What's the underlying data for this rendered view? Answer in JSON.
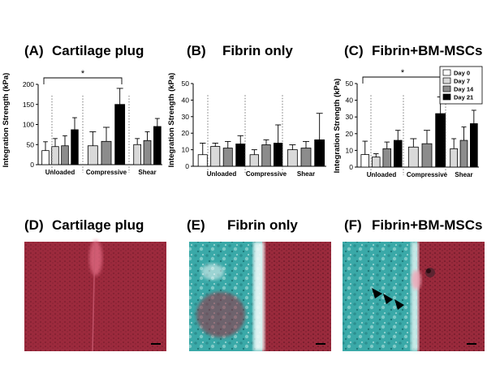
{
  "figure": {
    "panels": {
      "a": {
        "letter": "(A)",
        "title": "Cartilage plug"
      },
      "b": {
        "letter": "(B)",
        "title": "Fibrin only"
      },
      "c": {
        "letter": "(C)",
        "title": "Fibrin+BM-MSCs"
      },
      "d": {
        "letter": "(D)",
        "title": "Cartilage plug"
      },
      "e": {
        "letter": "(E)",
        "title": "Fibrin only"
      },
      "f": {
        "letter": "(F)",
        "title": "Fibrin+BM-MSCs"
      }
    },
    "colors": {
      "histology_background": "#9a2a3c",
      "fibrin_stain": "#3aa9a8",
      "arrowheads": "#000000"
    }
  },
  "chart_data": [
    {
      "type": "bar",
      "panel": "(A) Cartilage plug",
      "ylabel": "Integration Strength (kPa)",
      "ylim": [
        0,
        200
      ],
      "yticks": [
        0,
        50,
        100,
        150,
        200
      ],
      "categories": [
        "Unloaded",
        "Compressive",
        "Shear"
      ],
      "series": [
        {
          "name": "Day 0",
          "color": "#ffffff",
          "values": [
            35,
            null,
            null
          ],
          "errors": [
            22,
            null,
            null
          ]
        },
        {
          "name": "Day 7",
          "color": "#d9d9d9",
          "values": [
            45,
            47,
            50
          ],
          "errors": [
            20,
            35,
            15
          ]
        },
        {
          "name": "Day 14",
          "color": "#8c8c8c",
          "values": [
            47,
            58,
            60
          ],
          "errors": [
            25,
            35,
            22
          ]
        },
        {
          "name": "Day 21",
          "color": "#000000",
          "values": [
            87,
            150,
            95
          ],
          "errors": [
            30,
            40,
            20
          ]
        }
      ],
      "significance": [
        {
          "label": "*",
          "from": "Day 0 Unloaded",
          "to": "Day 21 Compressive"
        }
      ]
    },
    {
      "type": "bar",
      "panel": "(B) Fibrin only",
      "ylabel": "Integration Strength (kPa)",
      "ylim": [
        0,
        50
      ],
      "yticks": [
        0,
        10,
        20,
        30,
        40,
        50
      ],
      "categories": [
        "Unloaded",
        "Compressive",
        "Shear"
      ],
      "series": [
        {
          "name": "Day 0",
          "color": "#ffffff",
          "values": [
            7,
            null,
            null
          ],
          "errors": [
            7,
            null,
            null
          ]
        },
        {
          "name": "Day 7",
          "color": "#d9d9d9",
          "values": [
            12,
            7,
            10
          ],
          "errors": [
            2,
            3,
            3
          ]
        },
        {
          "name": "Day 14",
          "color": "#8c8c8c",
          "values": [
            11,
            13,
            11
          ],
          "errors": [
            4,
            3,
            4
          ]
        },
        {
          "name": "Day 21",
          "color": "#000000",
          "values": [
            13.5,
            14,
            16
          ],
          "errors": [
            5,
            11,
            16
          ]
        }
      ]
    },
    {
      "type": "bar",
      "panel": "(C) Fibrin+BM-MSCs",
      "ylabel": "Integration Strength (kPa)",
      "ylim": [
        0,
        50
      ],
      "yticks": [
        0,
        10,
        20,
        30,
        40,
        50
      ],
      "categories": [
        "Unloaded",
        "Compressive",
        "Shear"
      ],
      "legend": [
        "Day 0",
        "Day 7",
        "Day 14",
        "Day 21"
      ],
      "legend_position": "top-right",
      "series": [
        {
          "name": "Day 0",
          "color": "#ffffff",
          "values": [
            7.5,
            null,
            null
          ],
          "errors": [
            8,
            null,
            null
          ]
        },
        {
          "name": "Day 7",
          "color": "#d9d9d9",
          "values": [
            6,
            12,
            11
          ],
          "errors": [
            2,
            5,
            6
          ]
        },
        {
          "name": "Day 14",
          "color": "#8c8c8c",
          "values": [
            11,
            14,
            16
          ],
          "errors": [
            4,
            8,
            8
          ]
        },
        {
          "name": "Day 21",
          "color": "#000000",
          "values": [
            16,
            32,
            26
          ],
          "errors": [
            6,
            10,
            8
          ]
        }
      ],
      "significance": [
        {
          "label": "*",
          "from": "Day 0 Unloaded",
          "to": "Day 21 Compressive"
        }
      ]
    }
  ]
}
